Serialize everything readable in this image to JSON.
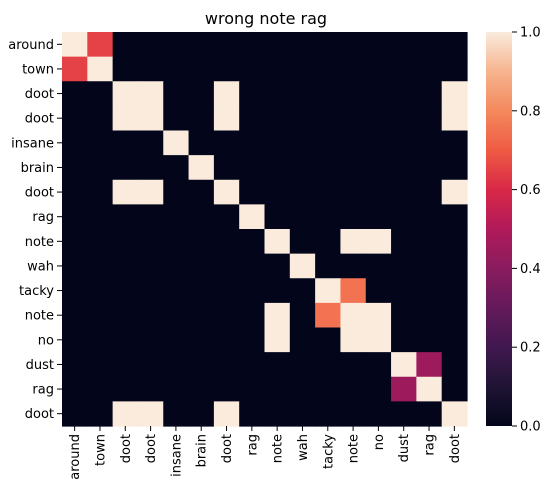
{
  "chart_data": {
    "type": "heatmap",
    "title": "wrong note rag",
    "xlabel": "",
    "ylabel": "",
    "row_labels": [
      "around",
      "town",
      "doot",
      "doot",
      "insane",
      "brain",
      "doot",
      "rag",
      "note",
      "wah",
      "tacky",
      "note",
      "no",
      "dust",
      "rag",
      "doot"
    ],
    "col_labels": [
      "around",
      "town",
      "doot",
      "doot",
      "insane",
      "brain",
      "doot",
      "rag",
      "note",
      "wah",
      "tacky",
      "note",
      "no",
      "dust",
      "rag",
      "doot"
    ],
    "colorbar": {
      "min": 0.0,
      "max": 1.0,
      "ticks": [
        "0.0",
        "0.2",
        "0.4",
        "0.6",
        "0.8",
        "1.0"
      ]
    },
    "matrix": [
      [
        1,
        0.65,
        0,
        0,
        0,
        0,
        0,
        0,
        0,
        0,
        0,
        0,
        0,
        0,
        0,
        0
      ],
      [
        0.65,
        1,
        0,
        0,
        0,
        0,
        0,
        0,
        0,
        0,
        0,
        0,
        0,
        0,
        0,
        0
      ],
      [
        0,
        0,
        1,
        1,
        0,
        0,
        1,
        0,
        0,
        0,
        0,
        0,
        0,
        0,
        0,
        1
      ],
      [
        0,
        0,
        1,
        1,
        0,
        0,
        1,
        0,
        0,
        0,
        0,
        0,
        0,
        0,
        0,
        1
      ],
      [
        0,
        0,
        0,
        0,
        1,
        0,
        0,
        0,
        0,
        0,
        0,
        0,
        0,
        0,
        0,
        0
      ],
      [
        0,
        0,
        0,
        0,
        0,
        1,
        0,
        0,
        0,
        0,
        0,
        0,
        0,
        0,
        0,
        0
      ],
      [
        0,
        0,
        1,
        1,
        0,
        0,
        1,
        0,
        0,
        0,
        0,
        0,
        0,
        0,
        0,
        1
      ],
      [
        0,
        0,
        0,
        0,
        0,
        0,
        0,
        1,
        0,
        0,
        0,
        0,
        0,
        0,
        0,
        0
      ],
      [
        0,
        0,
        0,
        0,
        0,
        0,
        0,
        0,
        1,
        0,
        0,
        1,
        1,
        0,
        0,
        0
      ],
      [
        0,
        0,
        0,
        0,
        0,
        0,
        0,
        0,
        0,
        1,
        0,
        0,
        0,
        0,
        0,
        0
      ],
      [
        0,
        0,
        0,
        0,
        0,
        0,
        0,
        0,
        0,
        0,
        1,
        0.75,
        0,
        0,
        0,
        0
      ],
      [
        0,
        0,
        0,
        0,
        0,
        0,
        0,
        0,
        1,
        0,
        0.75,
        1,
        1,
        0,
        0,
        0
      ],
      [
        0,
        0,
        0,
        0,
        0,
        0,
        0,
        0,
        1,
        0,
        0,
        1,
        1,
        0,
        0,
        0
      ],
      [
        0,
        0,
        0,
        0,
        0,
        0,
        0,
        0,
        0,
        0,
        0,
        0,
        0,
        1,
        0.45,
        0
      ],
      [
        0,
        0,
        0,
        0,
        0,
        0,
        0,
        0,
        0,
        0,
        0,
        0,
        0,
        0.45,
        1,
        0
      ],
      [
        0,
        0,
        1,
        1,
        0,
        0,
        1,
        0,
        0,
        0,
        0,
        0,
        0,
        0,
        0,
        1
      ]
    ]
  }
}
